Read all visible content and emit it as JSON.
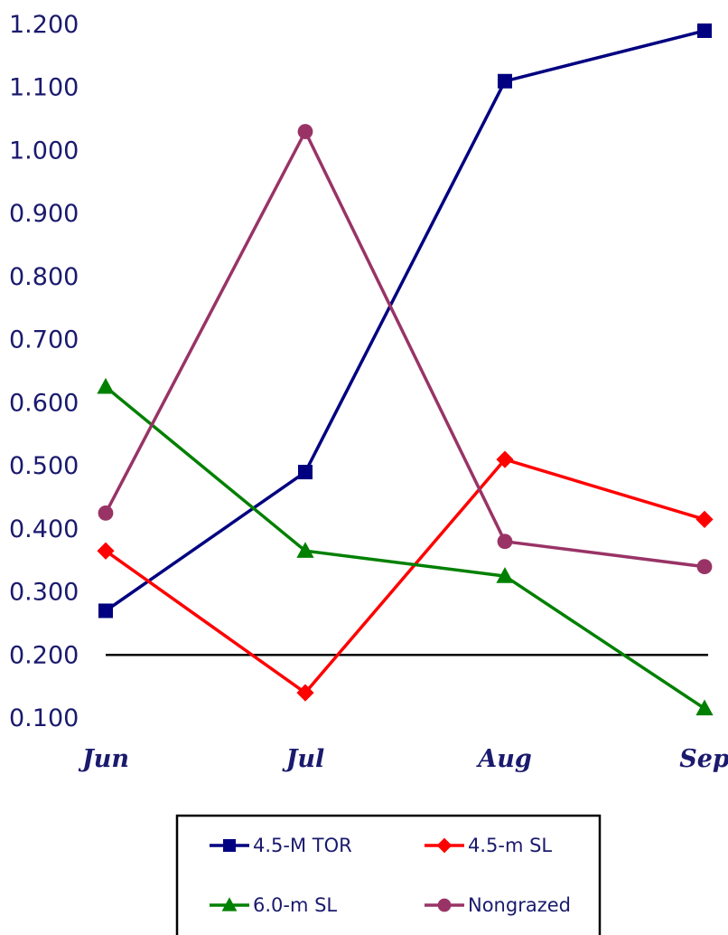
{
  "chart_data": {
    "type": "line",
    "categories": [
      "Jun",
      "Jul",
      "Aug",
      "Sep"
    ],
    "ylim": [
      0.1,
      1.2
    ],
    "yticks": [
      "0.100",
      "0.200",
      "0.300",
      "0.400",
      "0.500",
      "0.600",
      "0.700",
      "0.800",
      "0.900",
      "1.000",
      "1.100",
      "1.200"
    ],
    "title": "",
    "xlabel": "",
    "ylabel": "",
    "reference_line": 0.2,
    "legend_position": "bottom",
    "series": [
      {
        "name": "4.5-M TOR",
        "values": [
          0.27,
          0.49,
          1.11,
          1.19
        ],
        "color": "#000080",
        "marker": "square"
      },
      {
        "name": "4.5-m SL",
        "values": [
          0.365,
          0.14,
          0.51,
          0.415
        ],
        "color": "#ff0000",
        "marker": "diamond"
      },
      {
        "name": "6.0-m SL",
        "values": [
          0.625,
          0.365,
          0.325,
          0.115
        ],
        "color": "#008000",
        "marker": "triangle"
      },
      {
        "name": "Nongrazed",
        "values": [
          0.425,
          1.03,
          0.38,
          0.34
        ],
        "color": "#993366",
        "marker": "circle"
      }
    ]
  }
}
